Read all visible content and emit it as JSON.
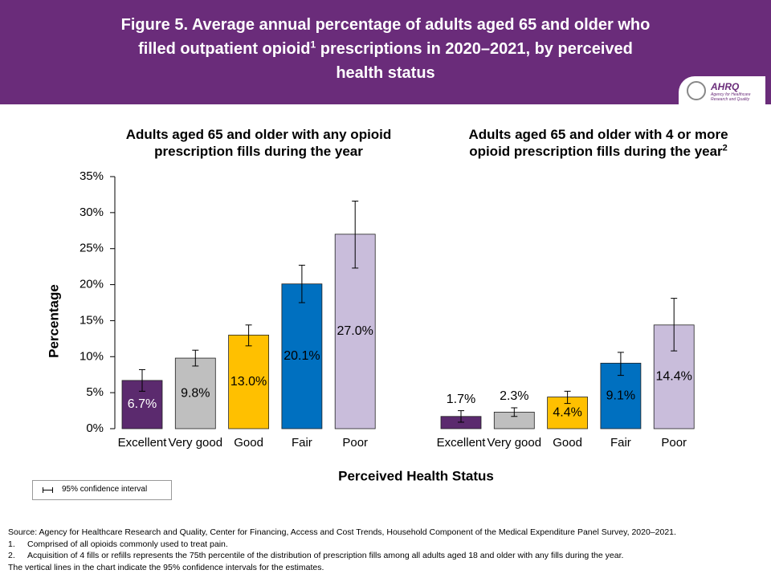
{
  "header": {
    "title_parts": [
      "Figure 5. Average annual percentage of adults aged 65 and older who filled outpatient opioid",
      "1",
      " prescriptions in 2020–2021, by perceived health status"
    ],
    "logo": {
      "name": "AHRQ",
      "text": "Agency for Healthcare Research and Quality"
    }
  },
  "chart_data": [
    {
      "type": "bar",
      "title": "Adults aged 65 and older with any opioid prescription fills during the year",
      "y_label": "Percentage",
      "x_label": "Perceived Health Status",
      "legend_label": "95% confidence interval",
      "categories": [
        "Excellent",
        "Very good",
        "Good",
        "Fair",
        "Poor"
      ],
      "values": [
        6.7,
        9.8,
        13.0,
        20.1,
        27.0
      ],
      "value_labels": [
        "6.7%",
        "9.8%",
        "13.0%",
        "20.1%",
        "27.0%"
      ],
      "ci_lower": [
        5.2,
        8.7,
        11.5,
        17.5,
        22.3
      ],
      "ci_upper": [
        8.2,
        10.9,
        14.4,
        22.7,
        31.6
      ],
      "colors": [
        "#5b2a6e",
        "#bfbfbf",
        "#ffc000",
        "#0070c0",
        "#c9bddb"
      ],
      "value_label_colors": [
        "#ffffff",
        "#000000",
        "#000000",
        "#000000",
        "#000000"
      ],
      "ylim": [
        0,
        35
      ],
      "yticks": [
        {
          "value": 0,
          "label": "0%"
        },
        {
          "value": 5,
          "label": "5%"
        },
        {
          "value": 10,
          "label": "10%"
        },
        {
          "value": 15,
          "label": "15%"
        },
        {
          "value": 20,
          "label": "20%"
        },
        {
          "value": 25,
          "label": "25%"
        },
        {
          "value": 30,
          "label": "30%"
        },
        {
          "value": 35,
          "label": "35%"
        }
      ]
    },
    {
      "type": "bar",
      "title": "Adults aged 65 and older with 4 or more opioid prescription fills during the year",
      "title_sup": "2",
      "categories": [
        "Excellent",
        "Very good",
        "Good",
        "Fair",
        "Poor"
      ],
      "values": [
        1.7,
        2.3,
        4.4,
        9.1,
        14.4
      ],
      "value_labels": [
        "1.7%",
        "2.3%",
        "4.4%",
        "9.1%",
        "14.4%"
      ],
      "ci_lower": [
        0.9,
        1.7,
        3.5,
        7.4,
        10.8
      ],
      "ci_upper": [
        2.5,
        2.9,
        5.2,
        10.6,
        18.1
      ],
      "colors": [
        "#5b2a6e",
        "#bfbfbf",
        "#ffc000",
        "#0070c0",
        "#c9bddb"
      ],
      "value_label_colors": [
        "#000000",
        "#000000",
        "#000000",
        "#000000",
        "#000000"
      ],
      "ylim": [
        0,
        35
      ]
    }
  ],
  "notes": {
    "source": "Source: Agency for Healthcare Research and Quality, Center for Financing, Access and Cost Trends, Household Component of the Medical Expenditure Panel Survey, 2020–2021.",
    "footnotes": [
      {
        "marker": "1.",
        "text": "Comprised of all opioids commonly used to treat pain."
      },
      {
        "marker": "2.",
        "text": "Acquisition of 4 fills or refills represents the 75th percentile of the distribution of prescription fills among all adults aged 18 and older with any fills during the year."
      }
    ],
    "vertical_note": "The vertical lines in the chart indicate the 95% confidence intervals for the estimates."
  }
}
